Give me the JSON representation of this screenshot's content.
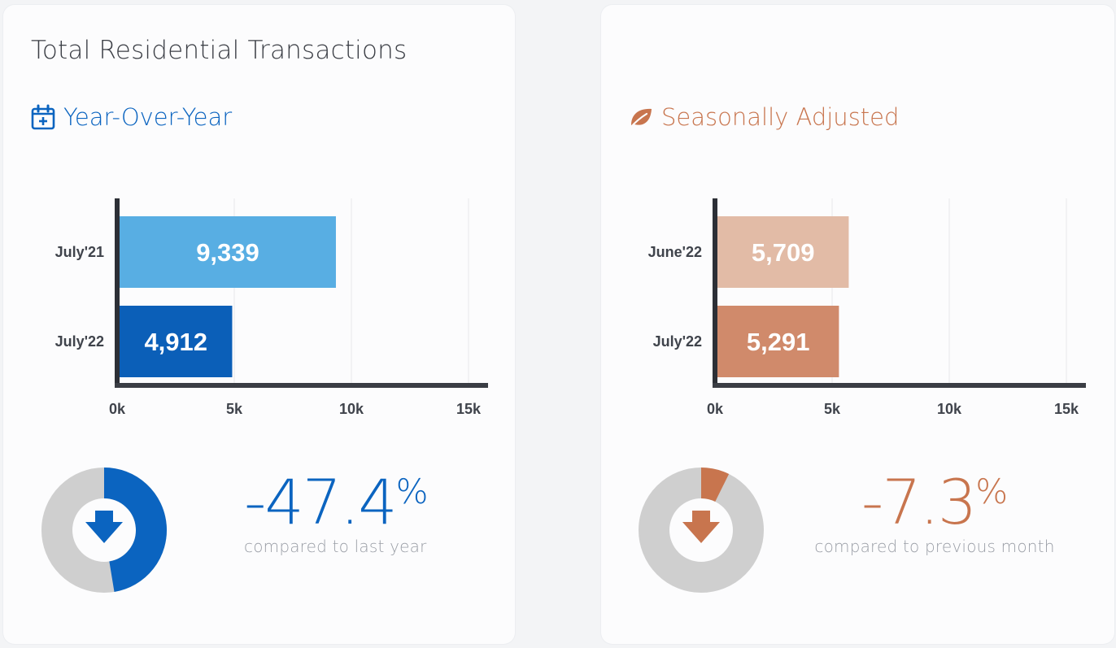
{
  "title": "Total Residential Transactions",
  "colors": {
    "yoy_accent": "#0b64c0",
    "sa_accent": "#c8754e",
    "donut_track": "#cfcfcf"
  },
  "left": {
    "section_title": "Year-Over-Year",
    "icon": "calendar-plus-icon",
    "change_value": "-47.4",
    "change_unit": "%",
    "change_caption": "compared to last year",
    "donut_icon": "down-arrow-icon",
    "donut_fill_fraction": 0.474
  },
  "right": {
    "section_title": "Seasonally Adjusted",
    "icon": "leaf-icon",
    "change_value": "-7.3",
    "change_unit": "%",
    "change_caption": "compared to previous month",
    "donut_icon": "down-arrow-icon",
    "donut_fill_fraction": 0.073
  },
  "chart_data": [
    {
      "type": "bar",
      "orientation": "horizontal",
      "categories": [
        "July'21",
        "July'22"
      ],
      "values": [
        9339,
        4912
      ],
      "value_labels": [
        "9,339",
        "4,912"
      ],
      "bar_colors": [
        "#58aee3",
        "#0b5fb8"
      ],
      "xlim": [
        0,
        15000
      ],
      "xticks": [
        0,
        5000,
        10000,
        15000
      ],
      "xtick_labels": [
        "0k",
        "5k",
        "10k",
        "15k"
      ],
      "grid": true
    },
    {
      "type": "bar",
      "orientation": "horizontal",
      "categories": [
        "June'22",
        "July'22"
      ],
      "values": [
        5709,
        5291
      ],
      "value_labels": [
        "5,709",
        "5,291"
      ],
      "bar_colors": [
        "#e2bba6",
        "#d08a6b"
      ],
      "xlim": [
        0,
        15000
      ],
      "xticks": [
        0,
        5000,
        10000,
        15000
      ],
      "xtick_labels": [
        "0k",
        "5k",
        "10k",
        "15k"
      ],
      "grid": true
    }
  ]
}
